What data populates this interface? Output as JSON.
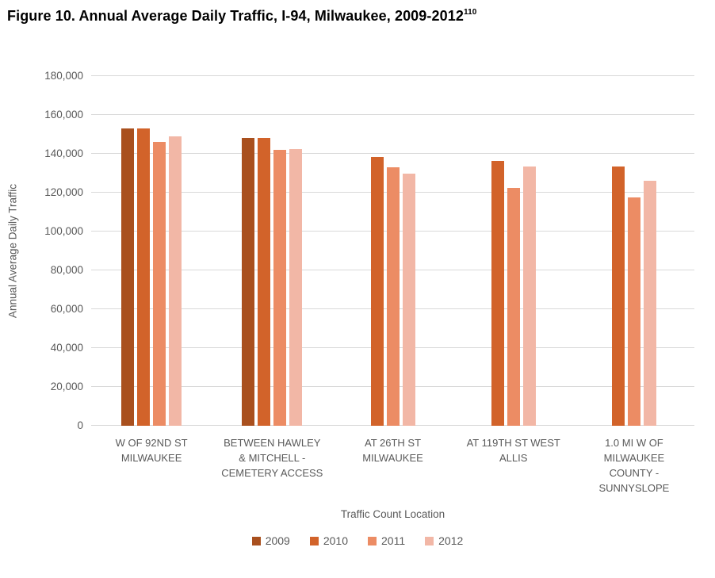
{
  "title": {
    "text": "Figure 10. Annual Average Daily Traffic, I-94, Milwaukee, 2009-2012",
    "footnote_ref": "110"
  },
  "chart_data": {
    "type": "bar",
    "title": "Figure 10. Annual Average Daily Traffic, I-94, Milwaukee, 2009-2012",
    "xlabel": "Traffic Count Location",
    "ylabel": "Annual Average Daily Traffic",
    "ylim": [
      0,
      180000
    ],
    "ytick_values": [
      0,
      20000,
      40000,
      60000,
      80000,
      100000,
      120000,
      140000,
      160000,
      180000
    ],
    "ytick_labels": [
      "0",
      "20,000",
      "40,000",
      "60,000",
      "80,000",
      "100,000",
      "120,000",
      "140,000",
      "160,000",
      "180,000"
    ],
    "grid": true,
    "legend_position": "bottom",
    "categories": [
      "W OF 92ND ST\nMILWAUKEE",
      "BETWEEN HAWLEY\n& MITCHELL -\nCEMETERY ACCESS",
      "AT 26TH ST\nMILWAUKEE",
      "AT 119TH ST WEST\nALLIS",
      "1.0 MI W OF\nMILWAUKEE\nCOUNTY -\nSUNNYSLOPE"
    ],
    "series": [
      {
        "name": "2009",
        "color": "#A9501E",
        "values": [
          153000,
          148000,
          null,
          null,
          null
        ]
      },
      {
        "name": "2010",
        "color": "#D2632A",
        "values": [
          153000,
          148000,
          138500,
          136500,
          133500
        ]
      },
      {
        "name": "2011",
        "color": "#EC8C64",
        "values": [
          146000,
          142000,
          133000,
          122500,
          117500
        ]
      },
      {
        "name": "2012",
        "color": "#F2B7A6",
        "values": [
          149000,
          142500,
          130000,
          133500,
          126000
        ]
      }
    ]
  },
  "colors": {
    "gridline": "#d9d9d9",
    "axis_text": "#595959",
    "title_text": "#010101",
    "background": "#ffffff"
  }
}
